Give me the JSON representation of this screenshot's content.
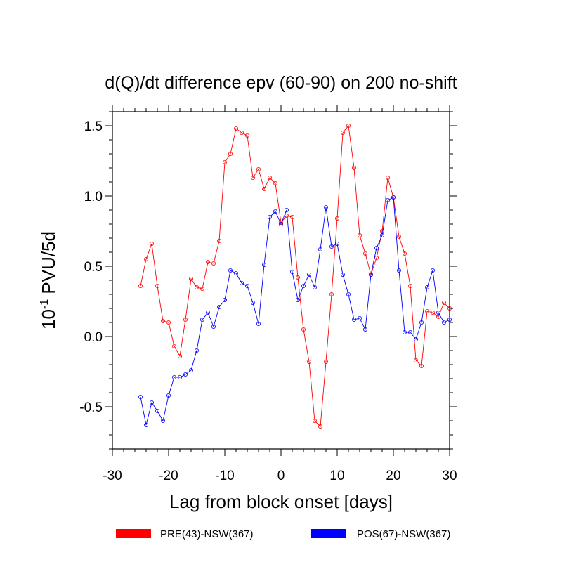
{
  "chart_data": {
    "type": "line",
    "title": "d(Q)/dt  difference epv (60-90) on 200 no-shift",
    "xlabel": "Lag from block onset [days]",
    "ylabel_base": "10",
    "ylabel_exp": "-1",
    "ylabel_rest": " PVU/5d",
    "xlim": [
      -30,
      30
    ],
    "ylim": [
      -0.8,
      1.6
    ],
    "x_ticks": [
      -30,
      -20,
      -10,
      0,
      10,
      20,
      30
    ],
    "x_tick_labels": [
      "-30",
      "-20",
      "-10",
      "0",
      "10",
      "20",
      "30"
    ],
    "y_ticks": [
      -0.5,
      0.0,
      0.5,
      1.0,
      1.5
    ],
    "y_tick_labels": [
      "-0.5",
      "0.0",
      "0.5",
      "1.0",
      "1.5"
    ],
    "grid": false,
    "legend_position": "bottom",
    "x": [
      -25,
      -24,
      -23,
      -22,
      -21,
      -20,
      -19,
      -18,
      -17,
      -16,
      -15,
      -14,
      -13,
      -12,
      -11,
      -10,
      -9,
      -8,
      -7,
      -6,
      -5,
      -4,
      -3,
      -2,
      -1,
      0,
      1,
      2,
      3,
      4,
      5,
      6,
      7,
      8,
      9,
      10,
      11,
      12,
      13,
      14,
      15,
      16,
      17,
      18,
      19,
      20,
      21,
      22,
      23,
      24,
      25,
      26,
      27,
      28,
      29,
      30
    ],
    "series": [
      {
        "name": "PRE(43)-NSW(367)",
        "color": "#ff0000",
        "values": [
          0.36,
          0.55,
          0.66,
          0.36,
          0.11,
          0.1,
          -0.07,
          -0.14,
          0.12,
          0.41,
          0.35,
          0.34,
          0.53,
          0.52,
          0.68,
          1.24,
          1.3,
          1.48,
          1.45,
          1.43,
          1.13,
          1.19,
          1.05,
          1.13,
          1.09,
          0.81,
          0.86,
          0.85,
          0.42,
          0.05,
          -0.18,
          -0.6,
          -0.64,
          -0.18,
          0.3,
          0.84,
          1.45,
          1.5,
          1.2,
          0.72,
          0.59,
          0.44,
          0.56,
          0.75,
          1.13,
          0.99,
          0.71,
          0.59,
          0.36,
          -0.17,
          -0.21,
          0.18,
          0.17,
          0.14,
          0.24,
          0.2
        ]
      },
      {
        "name": "POS(67)-NSW(367)",
        "color": "#0000ff",
        "values": [
          -0.43,
          -0.63,
          -0.47,
          -0.53,
          -0.6,
          -0.42,
          -0.29,
          -0.29,
          -0.27,
          -0.24,
          -0.1,
          0.12,
          0.17,
          0.07,
          0.21,
          0.26,
          0.47,
          0.45,
          0.38,
          0.36,
          0.24,
          0.09,
          0.51,
          0.85,
          0.89,
          0.8,
          0.9,
          0.46,
          0.26,
          0.36,
          0.44,
          0.35,
          0.62,
          0.92,
          0.64,
          0.66,
          0.44,
          0.3,
          0.12,
          0.13,
          0.05,
          0.44,
          0.63,
          0.72,
          0.97,
          0.99,
          0.47,
          0.03,
          0.03,
          -0.02,
          0.1,
          0.35,
          0.47,
          0.17,
          0.1,
          0.12
        ]
      }
    ]
  }
}
